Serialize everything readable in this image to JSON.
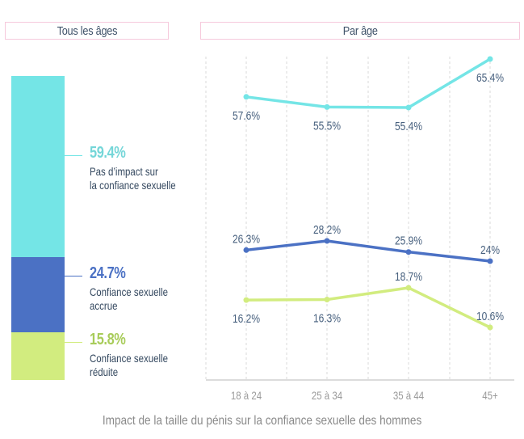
{
  "headers": {
    "left": "Tous les âges",
    "right": "Par âge"
  },
  "footer": "Impact de la taille du pénis sur la confiance sexuelle des hommes",
  "colors": {
    "cyan": "#74e5e6",
    "blue": "#4b71c4",
    "green": "#d2ec7f",
    "label": "#47607e",
    "cyanText": "#74d6d8",
    "greenText": "#a8cc5a"
  },
  "chart_data": [
    {
      "type": "bar",
      "title": "Tous les âges",
      "stacked": true,
      "categories": [
        "Tous les âges"
      ],
      "series": [
        {
          "name": "Pas d'impact sur la confiance sexuelle",
          "value": 59.4,
          "label": "59.4%",
          "text": "Pas d’impact sur\nla confiance sexuelle"
        },
        {
          "name": "Confiance sexuelle accrue",
          "value": 24.7,
          "label": "24.7%",
          "text": "Confiance sexuelle\naccrue"
        },
        {
          "name": "Confiance sexuelle réduite",
          "value": 15.8,
          "label": "15.8%",
          "text": "Confiance sexuelle\nréduite"
        }
      ]
    },
    {
      "type": "line",
      "title": "Par âge",
      "x": [
        "18 à 24",
        "25 à 34",
        "35 à 44",
        "45+"
      ],
      "grid": true,
      "series": [
        {
          "name": "Pas d'impact sur la confiance sexuelle",
          "values": [
            57.6,
            55.5,
            55.4,
            65.4
          ],
          "labels": [
            "57.6%",
            "55.5%",
            "55.4%",
            "65.4%"
          ]
        },
        {
          "name": "Confiance sexuelle accrue",
          "values": [
            26.3,
            28.2,
            25.9,
            24.0
          ],
          "labels": [
            "26.3%",
            "28.2%",
            "25.9%",
            "24%"
          ]
        },
        {
          "name": "Confiance sexuelle réduite",
          "values": [
            16.2,
            16.3,
            18.7,
            10.6
          ],
          "labels": [
            "16.2%",
            "16.3%",
            "18.7%",
            "10.6%"
          ]
        }
      ]
    }
  ]
}
